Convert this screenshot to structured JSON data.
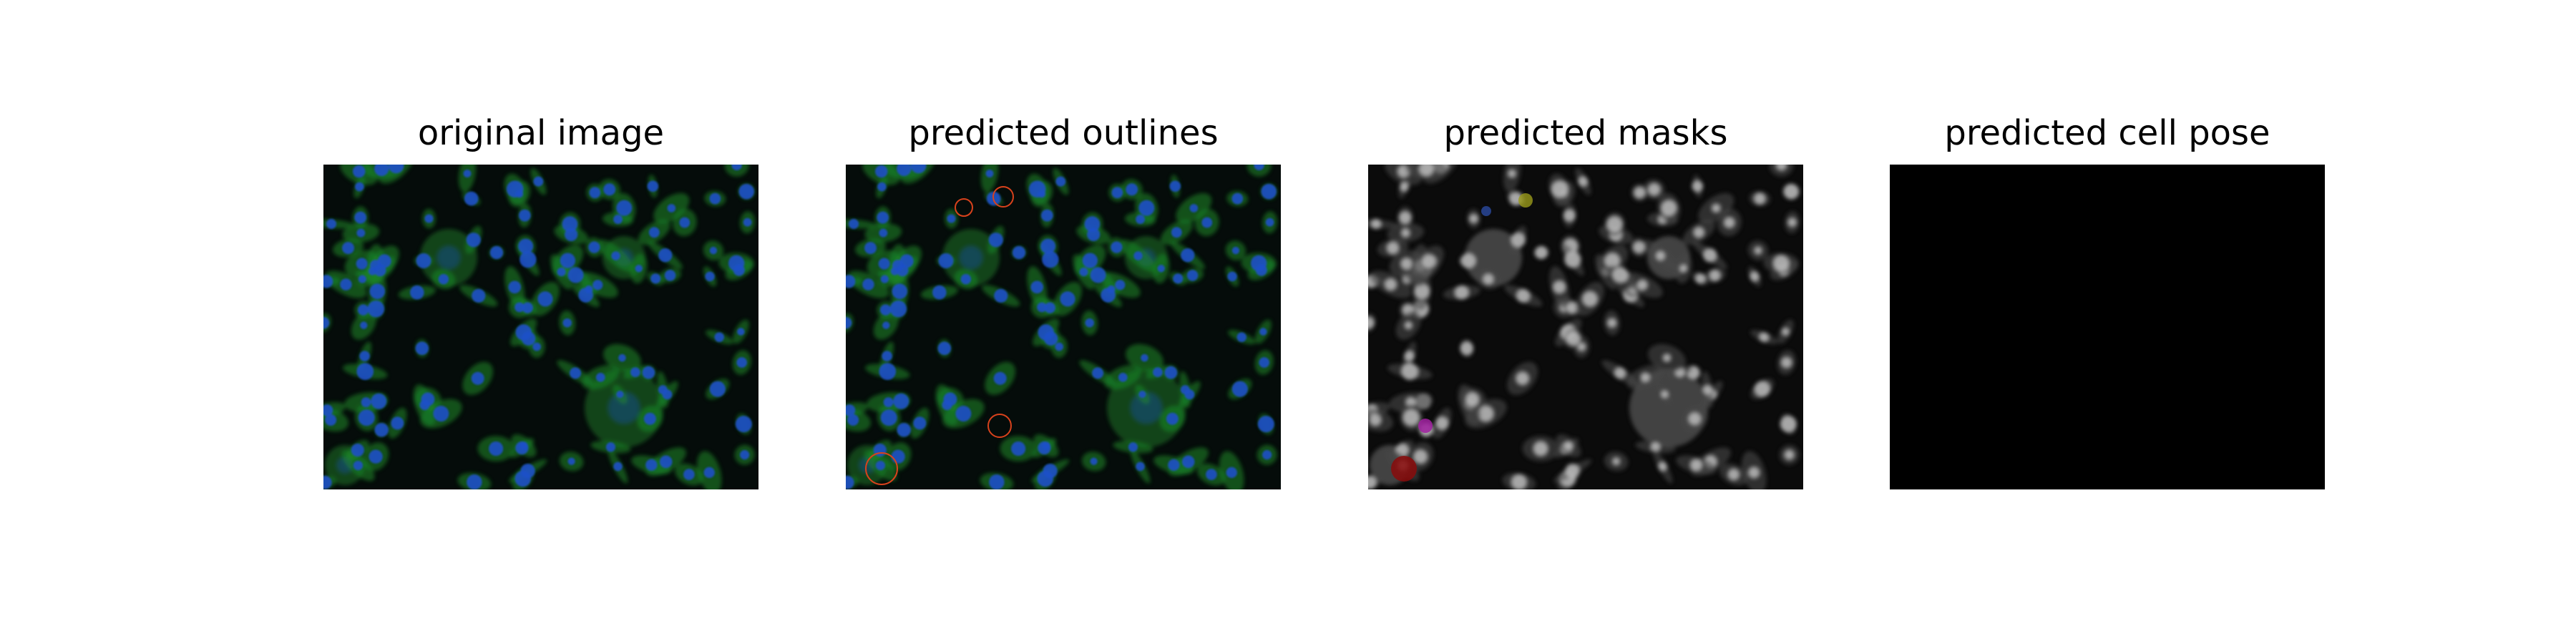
{
  "panels": [
    {
      "title": "original image"
    },
    {
      "title": "predicted outlines"
    },
    {
      "title": "predicted masks"
    },
    {
      "title": "predicted cell pose"
    }
  ],
  "colors": {
    "background": "#ffffff",
    "image_bg": "#050c0a",
    "cell_nucleus": "#1f4fc8",
    "cell_body": "#1e8a2a",
    "outline": "#d8421c",
    "mask_gray": "#8a8a8a",
    "pose_black": "#000000"
  }
}
